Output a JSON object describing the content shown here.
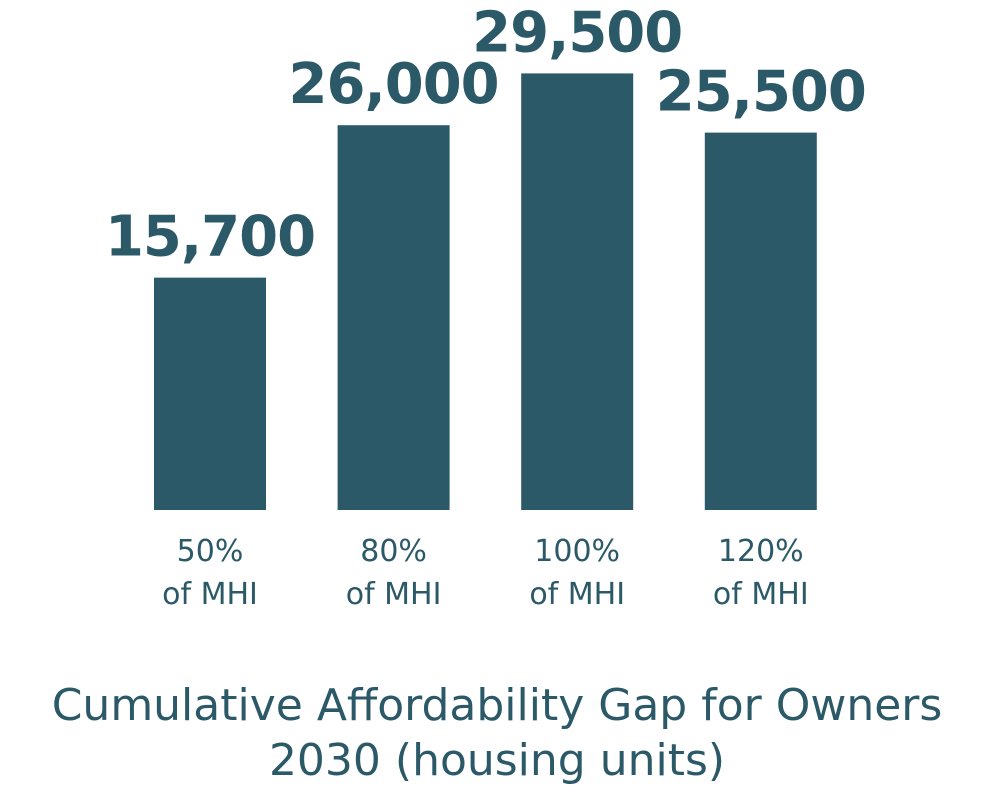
{
  "chart_data": {
    "type": "bar",
    "categories": [
      [
        "50%",
        "of MHI"
      ],
      [
        "80%",
        "of MHI"
      ],
      [
        "100%",
        "of MHI"
      ],
      [
        "120%",
        "of MHI"
      ]
    ],
    "values": [
      15700,
      26000,
      29500,
      25500
    ],
    "value_labels": [
      "15,700",
      "26,000",
      "29,500",
      "25,500"
    ],
    "title_lines": [
      "Cumulative Affordability Gap for Owners",
      "2030 (housing units)"
    ],
    "ylim": [
      0,
      30000
    ],
    "grid": false,
    "legend": "none",
    "colors": {
      "bar": "#2c5968",
      "text": "#2c5968"
    }
  }
}
